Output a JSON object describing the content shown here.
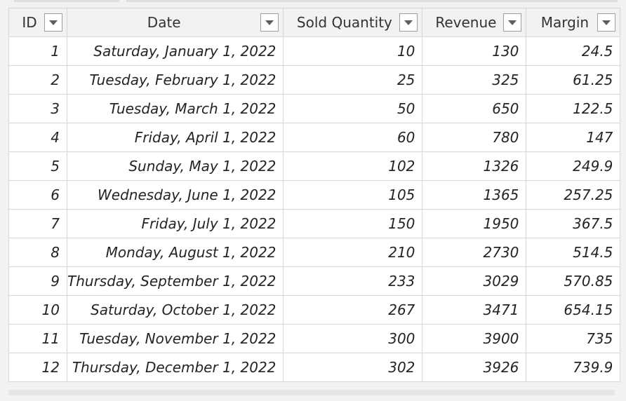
{
  "columns": [
    {
      "label": "ID"
    },
    {
      "label": "Date"
    },
    {
      "label": "Sold Quantity"
    },
    {
      "label": "Revenue"
    },
    {
      "label": "Margin"
    }
  ],
  "rows": [
    {
      "id": "1",
      "date": "Saturday, January 1, 2022",
      "qty": "10",
      "revenue": "130",
      "margin": "24.5"
    },
    {
      "id": "2",
      "date": "Tuesday, February 1, 2022",
      "qty": "25",
      "revenue": "325",
      "margin": "61.25"
    },
    {
      "id": "3",
      "date": "Tuesday, March 1, 2022",
      "qty": "50",
      "revenue": "650",
      "margin": "122.5"
    },
    {
      "id": "4",
      "date": "Friday, April 1, 2022",
      "qty": "60",
      "revenue": "780",
      "margin": "147"
    },
    {
      "id": "5",
      "date": "Sunday, May 1, 2022",
      "qty": "102",
      "revenue": "1326",
      "margin": "249.9"
    },
    {
      "id": "6",
      "date": "Wednesday, June 1, 2022",
      "qty": "105",
      "revenue": "1365",
      "margin": "257.25"
    },
    {
      "id": "7",
      "date": "Friday, July 1, 2022",
      "qty": "150",
      "revenue": "1950",
      "margin": "367.5"
    },
    {
      "id": "8",
      "date": "Monday, August 1, 2022",
      "qty": "210",
      "revenue": "2730",
      "margin": "514.5"
    },
    {
      "id": "9",
      "date": "Thursday, September 1, 2022",
      "qty": "233",
      "revenue": "3029",
      "margin": "570.85"
    },
    {
      "id": "10",
      "date": "Saturday, October 1, 2022",
      "qty": "267",
      "revenue": "3471",
      "margin": "654.15"
    },
    {
      "id": "11",
      "date": "Tuesday, November 1, 2022",
      "qty": "300",
      "revenue": "3900",
      "margin": "735"
    },
    {
      "id": "12",
      "date": "Thursday, December 1, 2022",
      "qty": "302",
      "revenue": "3926",
      "margin": "739.9"
    }
  ],
  "icons": {
    "filter": "chevron-down-icon"
  }
}
